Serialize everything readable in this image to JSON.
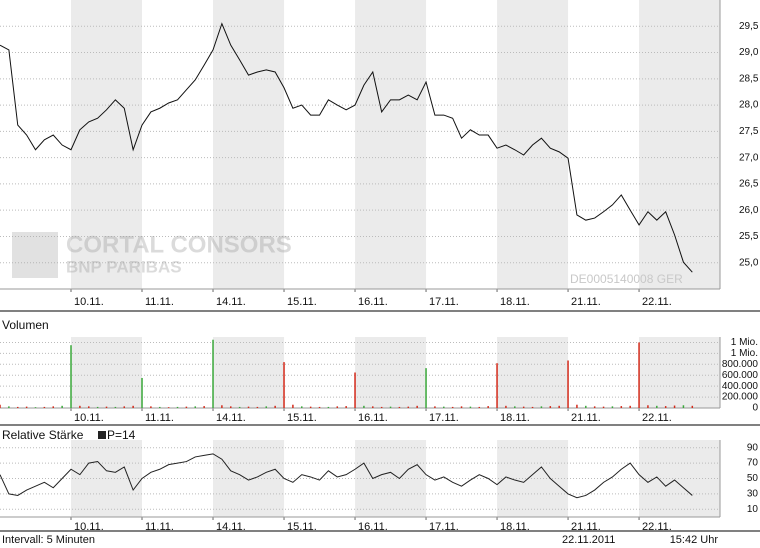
{
  "chart_data": [
    {
      "type": "line",
      "xlim": [
        0,
        10.14
      ],
      "ylim": [
        24.5,
        30.0
      ],
      "xticks": [
        {
          "value": 1,
          "label": "10.11."
        },
        {
          "value": 2,
          "label": "11.11."
        },
        {
          "value": 3,
          "label": "14.11."
        },
        {
          "value": 4,
          "label": "15.11."
        },
        {
          "value": 5,
          "label": "16.11."
        },
        {
          "value": 6,
          "label": "17.11."
        },
        {
          "value": 7,
          "label": "18.11."
        },
        {
          "value": 8,
          "label": "21.11."
        },
        {
          "value": 9,
          "label": "22.11."
        }
      ],
      "yticks": [
        {
          "value": 25.0,
          "label": "25,0"
        },
        {
          "value": 25.5,
          "label": "25,5"
        },
        {
          "value": 26.0,
          "label": "26,0"
        },
        {
          "value": 26.5,
          "label": "26,5"
        },
        {
          "value": 27.0,
          "label": "27,0"
        },
        {
          "value": 27.5,
          "label": "27,5"
        },
        {
          "value": 28.0,
          "label": "28,0"
        },
        {
          "value": 28.5,
          "label": "28,5"
        },
        {
          "value": 29.0,
          "label": "29,0"
        },
        {
          "value": 29.5,
          "label": "29,5"
        }
      ],
      "grid": true,
      "watermark": [
        "CORTAL CONSORS",
        "BNP PARIBAS"
      ],
      "annotation": "DE0005140008  GER",
      "x": [
        0,
        0.125,
        0.25,
        0.375,
        0.5,
        0.625,
        0.75,
        0.875,
        1,
        1.125,
        1.25,
        1.375,
        1.5,
        1.625,
        1.75,
        1.875,
        2,
        2.125,
        2.25,
        2.375,
        2.5,
        2.625,
        2.75,
        2.875,
        3,
        3.125,
        3.25,
        3.375,
        3.5,
        3.625,
        3.75,
        3.875,
        4,
        4.125,
        4.25,
        4.375,
        4.5,
        4.625,
        4.75,
        4.875,
        5,
        5.125,
        5.25,
        5.375,
        5.5,
        5.625,
        5.75,
        5.875,
        6,
        6.125,
        6.25,
        6.375,
        6.5,
        6.625,
        6.75,
        6.875,
        7,
        7.125,
        7.25,
        7.375,
        7.5,
        7.625,
        7.75,
        7.875,
        8,
        8.125,
        8.25,
        8.375,
        8.5,
        8.625,
        8.75,
        8.875,
        9,
        9.125,
        9.25,
        9.375,
        9.5,
        9.625,
        9.75
      ],
      "series": [
        {
          "color": "#111111",
          "values": [
            29.14,
            29.05,
            27.62,
            27.43,
            27.15,
            27.34,
            27.43,
            27.24,
            27.15,
            27.53,
            27.68,
            27.75,
            27.91,
            28.1,
            27.94,
            27.15,
            27.62,
            27.87,
            27.94,
            28.04,
            28.1,
            28.29,
            28.48,
            28.76,
            29.05,
            29.55,
            29.14,
            28.86,
            28.57,
            28.63,
            28.67,
            28.63,
            28.33,
            27.94,
            28.0,
            27.81,
            27.81,
            28.1,
            28.0,
            27.91,
            28.0,
            28.38,
            28.63,
            27.87,
            28.1,
            28.1,
            28.19,
            28.1,
            28.44,
            27.81,
            27.81,
            27.75,
            27.37,
            27.53,
            27.43,
            27.43,
            27.18,
            27.24,
            27.15,
            27.05,
            27.24,
            27.37,
            27.18,
            27.11,
            26.99,
            25.91,
            25.81,
            25.85,
            25.97,
            26.1,
            26.29,
            26.0,
            25.72,
            25.97,
            25.81,
            25.97,
            25.53,
            25.01,
            24.82
          ]
        }
      ]
    },
    {
      "type": "bar",
      "title": "Volumen",
      "xlim": [
        0,
        10.14
      ],
      "ylim": [
        0,
        1300000
      ],
      "xticks": [
        {
          "value": 1,
          "label": "10.11."
        },
        {
          "value": 2,
          "label": "11.11."
        },
        {
          "value": 3,
          "label": "14.11."
        },
        {
          "value": 4,
          "label": "15.11."
        },
        {
          "value": 5,
          "label": "16.11."
        },
        {
          "value": 6,
          "label": "17.11."
        },
        {
          "value": 7,
          "label": "18.11."
        },
        {
          "value": 8,
          "label": "21.11."
        },
        {
          "value": 9,
          "label": "22.11."
        }
      ],
      "yticks": [
        0,
        {
          "value": 200000,
          "label": "200.000"
        },
        {
          "value": 400000,
          "label": "400.000"
        },
        {
          "value": 600000,
          "label": "600.000"
        },
        {
          "value": 800000,
          "label": "800.000"
        },
        {
          "value": 1000000,
          "label": "1 Mio."
        },
        {
          "value": 1200000,
          "label": "1 Mio."
        }
      ],
      "grid": true,
      "x": [
        0,
        0.125,
        0.25,
        0.375,
        0.5,
        0.625,
        0.75,
        0.875,
        1,
        1.125,
        1.25,
        1.375,
        1.5,
        1.625,
        1.75,
        1.875,
        2,
        2.125,
        2.25,
        2.375,
        2.5,
        2.625,
        2.75,
        2.875,
        3,
        3.125,
        3.25,
        3.375,
        3.5,
        3.625,
        3.75,
        3.875,
        4,
        4.125,
        4.25,
        4.375,
        4.5,
        4.625,
        4.75,
        4.875,
        5,
        5.125,
        5.25,
        5.375,
        5.5,
        5.625,
        5.75,
        5.875,
        6,
        6.125,
        6.25,
        6.375,
        6.5,
        6.625,
        6.75,
        6.875,
        7,
        7.125,
        7.25,
        7.375,
        7.5,
        7.625,
        7.75,
        7.875,
        8,
        8.125,
        8.25,
        8.375,
        8.5,
        8.625,
        8.75,
        8.875,
        9,
        9.125,
        9.25,
        9.375,
        9.5,
        9.625,
        9.75
      ],
      "values": [
        60000,
        30000,
        20000,
        25000,
        15000,
        20000,
        30000,
        40000,
        1150000,
        40000,
        30000,
        20000,
        25000,
        20000,
        30000,
        40000,
        550000,
        30000,
        20000,
        15000,
        20000,
        25000,
        30000,
        35000,
        1250000,
        50000,
        30000,
        20000,
        25000,
        20000,
        30000,
        40000,
        840000,
        60000,
        30000,
        25000,
        20000,
        20000,
        30000,
        35000,
        650000,
        40000,
        30000,
        20000,
        25000,
        20000,
        25000,
        40000,
        730000,
        30000,
        25000,
        20000,
        30000,
        25000,
        20000,
        35000,
        820000,
        40000,
        30000,
        25000,
        20000,
        30000,
        35000,
        40000,
        870000,
        60000,
        40000,
        30000,
        25000,
        30000,
        35000,
        40000,
        1200000,
        50000,
        40000,
        35000,
        45000,
        50000,
        40000
      ],
      "colors": [
        "#d42a1a",
        "#3aa83a",
        "#d42a1a",
        "#d42a1a",
        "#3aa83a",
        "#d42a1a",
        "#d42a1a",
        "#3aa83a",
        "#3aa83a",
        "#d42a1a",
        "#d42a1a",
        "#3aa83a",
        "#d42a1a",
        "#3aa83a",
        "#d42a1a",
        "#d42a1a",
        "#3aa83a",
        "#d42a1a",
        "#3aa83a",
        "#d42a1a",
        "#3aa83a",
        "#d42a1a",
        "#3aa83a",
        "#d42a1a",
        "#3aa83a",
        "#d42a1a",
        "#d42a1a",
        "#3aa83a",
        "#d42a1a",
        "#d42a1a",
        "#3aa83a",
        "#d42a1a",
        "#d42a1a",
        "#d42a1a",
        "#3aa83a",
        "#d42a1a",
        "#d42a1a",
        "#3aa83a",
        "#d42a1a",
        "#d42a1a",
        "#d42a1a",
        "#3aa83a",
        "#d42a1a",
        "#d42a1a",
        "#3aa83a",
        "#d42a1a",
        "#d42a1a",
        "#d42a1a",
        "#3aa83a",
        "#d42a1a",
        "#3aa83a",
        "#d42a1a",
        "#d42a1a",
        "#3aa83a",
        "#d42a1a",
        "#d42a1a",
        "#d42a1a",
        "#d42a1a",
        "#3aa83a",
        "#d42a1a",
        "#d42a1a",
        "#3aa83a",
        "#d42a1a",
        "#d42a1a",
        "#d42a1a",
        "#d42a1a",
        "#3aa83a",
        "#d42a1a",
        "#d42a1a",
        "#3aa83a",
        "#d42a1a",
        "#d42a1a",
        "#d42a1a",
        "#d42a1a",
        "#3aa83a",
        "#d42a1a",
        "#d42a1a",
        "#3aa83a",
        "#d42a1a"
      ]
    },
    {
      "type": "line",
      "title": "Relative Stärke",
      "xlim": [
        0,
        10.14
      ],
      "ylim": [
        0,
        100
      ],
      "xticks": [
        {
          "value": 1,
          "label": "10.11."
        },
        {
          "value": 2,
          "label": "11.11."
        },
        {
          "value": 3,
          "label": "14.11."
        },
        {
          "value": 4,
          "label": "15.11."
        },
        {
          "value": 5,
          "label": "16.11."
        },
        {
          "value": 6,
          "label": "17.11."
        },
        {
          "value": 7,
          "label": "18.11."
        },
        {
          "value": 8,
          "label": "21.11."
        },
        {
          "value": 9,
          "label": "22.11."
        }
      ],
      "yticks": [
        10,
        30,
        50,
        70,
        90
      ],
      "grid": true,
      "x": [
        0,
        0.125,
        0.25,
        0.375,
        0.5,
        0.625,
        0.75,
        0.875,
        1,
        1.125,
        1.25,
        1.375,
        1.5,
        1.625,
        1.75,
        1.875,
        2,
        2.125,
        2.25,
        2.375,
        2.5,
        2.625,
        2.75,
        2.875,
        3,
        3.125,
        3.25,
        3.375,
        3.5,
        3.625,
        3.75,
        3.875,
        4,
        4.125,
        4.25,
        4.375,
        4.5,
        4.625,
        4.75,
        4.875,
        5,
        5.125,
        5.25,
        5.375,
        5.5,
        5.625,
        5.75,
        5.875,
        6,
        6.125,
        6.25,
        6.375,
        6.5,
        6.625,
        6.75,
        6.875,
        7,
        7.125,
        7.25,
        7.375,
        7.5,
        7.625,
        7.75,
        7.875,
        8,
        8.125,
        8.25,
        8.375,
        8.5,
        8.625,
        8.75,
        8.875,
        9,
        9.125,
        9.25,
        9.375,
        9.5,
        9.625,
        9.75
      ],
      "series": [
        {
          "name": "P=14",
          "color": "#222222",
          "values": [
            55,
            30,
            28,
            35,
            40,
            45,
            38,
            50,
            62,
            55,
            70,
            72,
            60,
            58,
            65,
            35,
            50,
            58,
            62,
            68,
            70,
            72,
            78,
            80,
            82,
            75,
            60,
            55,
            48,
            52,
            58,
            62,
            50,
            45,
            55,
            52,
            48,
            60,
            52,
            55,
            62,
            70,
            50,
            55,
            58,
            50,
            62,
            68,
            55,
            48,
            52,
            45,
            40,
            48,
            55,
            50,
            42,
            52,
            48,
            45,
            55,
            65,
            50,
            40,
            30,
            25,
            28,
            35,
            45,
            52,
            62,
            70,
            55,
            45,
            52,
            40,
            48,
            38,
            28
          ]
        }
      ]
    }
  ],
  "footer": {
    "interval": "Intervall: 5 Minuten",
    "date": "22.11.2011",
    "time": "15:42 Uhr"
  }
}
